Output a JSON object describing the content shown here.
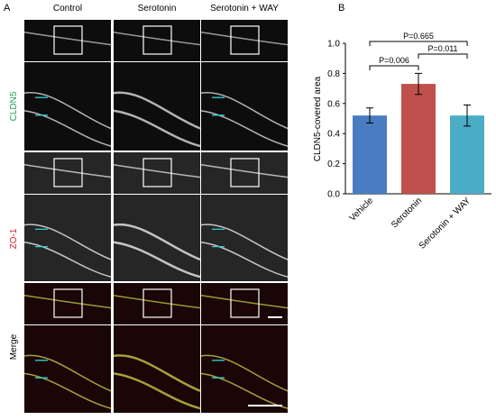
{
  "panel_a": {
    "label": "A",
    "columns": [
      "Control",
      "Serotonin",
      "Serotonin + WAY"
    ],
    "rows": [
      "CLDN5",
      "ZO-1",
      "Merge"
    ]
  },
  "chart_data": {
    "type": "bar",
    "panel_label": "B",
    "y_label": "CLDN5-covered area",
    "categories": [
      "Vehicle",
      "Serotonin",
      "Serotonin + WAY"
    ],
    "values": [
      0.52,
      0.73,
      0.52
    ],
    "errors": [
      0.05,
      0.07,
      0.07
    ],
    "colors": [
      "#4a7cc2",
      "#c0504d",
      "#4bacc6"
    ],
    "ylim": [
      0,
      1
    ],
    "yticks": [
      {
        "value": 0,
        "label": "0.0"
      },
      0.2,
      0.4,
      0.6,
      0.8,
      {
        "value": 1,
        "label": "1.0"
      }
    ],
    "annotations": [
      "P=0.006",
      "P=0.011",
      "P=0.665"
    ]
  }
}
